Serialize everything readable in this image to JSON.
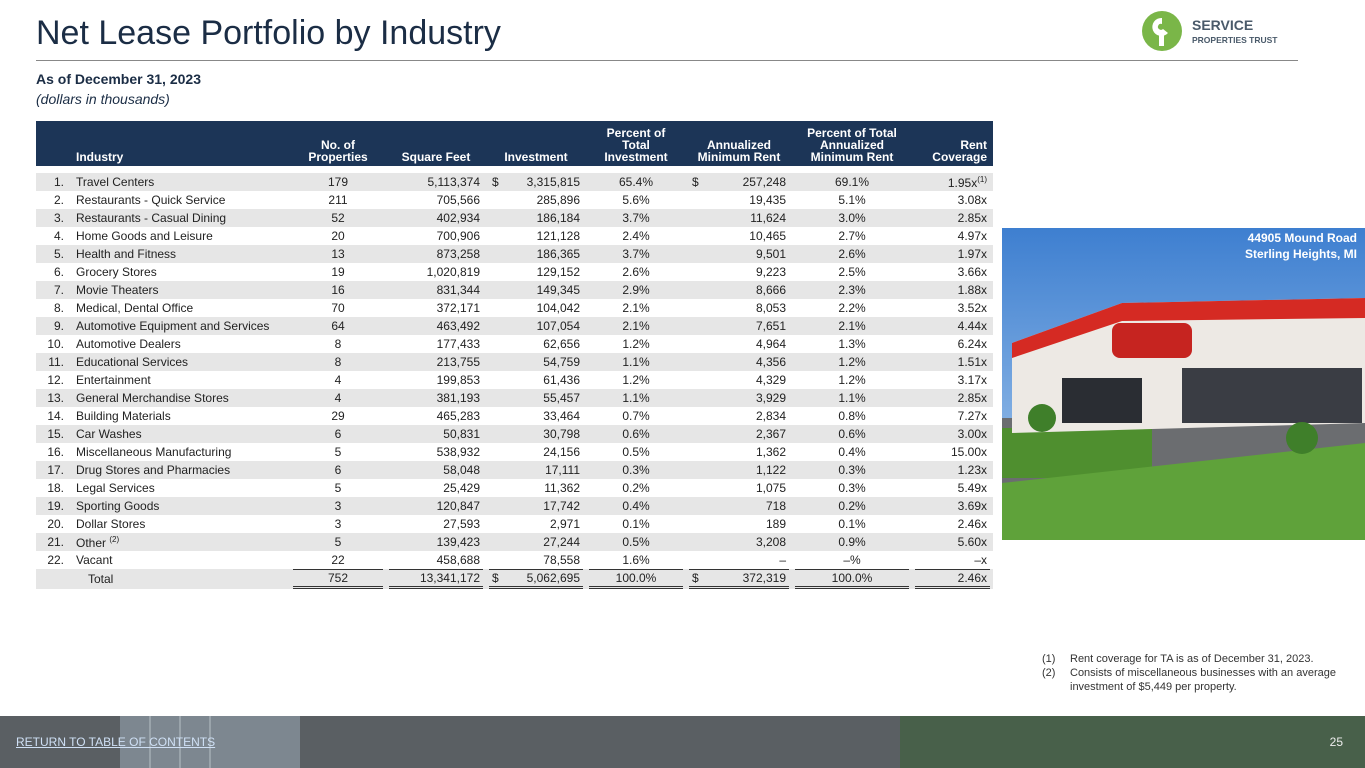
{
  "header": {
    "title": "Net Lease Portfolio by Industry",
    "logo_top": "SERVICE",
    "logo_bottom": "PROPERTIES TRUST",
    "subtitle": "As of December 31, 2023",
    "units": "(dollars in thousands)"
  },
  "table": {
    "columns": [
      "Industry",
      "No. of Properties",
      "Square Feet",
      "Investment",
      "Percent of Total Investment",
      "Annualized Minimum Rent",
      "Percent of Total Annualized Minimum Rent",
      "Rent Coverage"
    ],
    "rows": [
      {
        "n": "1.",
        "industry": "Travel Centers",
        "values": [
          "179",
          "5,113,374",
          "3,315,815",
          "65.4%",
          "257,248",
          "69.1%",
          "1.95x"
        ],
        "currency": "$",
        "coverage_note": "(1)"
      },
      {
        "n": "2.",
        "industry": "Restaurants - Quick Service",
        "values": [
          "211",
          "705,566",
          "285,896",
          "5.6%",
          "19,435",
          "5.1%",
          "3.08x"
        ]
      },
      {
        "n": "3.",
        "industry": "Restaurants - Casual Dining",
        "values": [
          "52",
          "402,934",
          "186,184",
          "3.7%",
          "11,624",
          "3.0%",
          "2.85x"
        ]
      },
      {
        "n": "4.",
        "industry": "Home Goods and Leisure",
        "values": [
          "20",
          "700,906",
          "121,128",
          "2.4%",
          "10,465",
          "2.7%",
          "4.97x"
        ]
      },
      {
        "n": "5.",
        "industry": "Health and Fitness",
        "values": [
          "13",
          "873,258",
          "186,365",
          "3.7%",
          "9,501",
          "2.6%",
          "1.97x"
        ]
      },
      {
        "n": "6.",
        "industry": "Grocery Stores",
        "values": [
          "19",
          "1,020,819",
          "129,152",
          "2.6%",
          "9,223",
          "2.5%",
          "3.66x"
        ]
      },
      {
        "n": "7.",
        "industry": "Movie Theaters",
        "values": [
          "16",
          "831,344",
          "149,345",
          "2.9%",
          "8,666",
          "2.3%",
          "1.88x"
        ]
      },
      {
        "n": "8.",
        "industry": "Medical, Dental Office",
        "values": [
          "70",
          "372,171",
          "104,042",
          "2.1%",
          "8,053",
          "2.2%",
          "3.52x"
        ]
      },
      {
        "n": "9.",
        "industry": "Automotive Equipment and Services",
        "values": [
          "64",
          "463,492",
          "107,054",
          "2.1%",
          "7,651",
          "2.1%",
          "4.44x"
        ]
      },
      {
        "n": "10.",
        "industry": "Automotive Dealers",
        "values": [
          "8",
          "177,433",
          "62,656",
          "1.2%",
          "4,964",
          "1.3%",
          "6.24x"
        ]
      },
      {
        "n": "11.",
        "industry": "Educational Services",
        "values": [
          "8",
          "213,755",
          "54,759",
          "1.1%",
          "4,356",
          "1.2%",
          "1.51x"
        ]
      },
      {
        "n": "12.",
        "industry": "Entertainment",
        "values": [
          "4",
          "199,853",
          "61,436",
          "1.2%",
          "4,329",
          "1.2%",
          "3.17x"
        ]
      },
      {
        "n": "13.",
        "industry": "General Merchandise Stores",
        "values": [
          "4",
          "381,193",
          "55,457",
          "1.1%",
          "3,929",
          "1.1%",
          "2.85x"
        ]
      },
      {
        "n": "14.",
        "industry": "Building Materials",
        "values": [
          "29",
          "465,283",
          "33,464",
          "0.7%",
          "2,834",
          "0.8%",
          "7.27x"
        ]
      },
      {
        "n": "15.",
        "industry": "Car Washes",
        "values": [
          "6",
          "50,831",
          "30,798",
          "0.6%",
          "2,367",
          "0.6%",
          "3.00x"
        ]
      },
      {
        "n": "16.",
        "industry": "Miscellaneous Manufacturing",
        "values": [
          "5",
          "538,932",
          "24,156",
          "0.5%",
          "1,362",
          "0.4%",
          "15.00x"
        ]
      },
      {
        "n": "17.",
        "industry": "Drug Stores and Pharmacies",
        "values": [
          "6",
          "58,048",
          "17,111",
          "0.3%",
          "1,122",
          "0.3%",
          "1.23x"
        ]
      },
      {
        "n": "18.",
        "industry": "Legal Services",
        "values": [
          "5",
          "25,429",
          "11,362",
          "0.2%",
          "1,075",
          "0.3%",
          "5.49x"
        ]
      },
      {
        "n": "19.",
        "industry": "Sporting Goods",
        "values": [
          "3",
          "120,847",
          "17,742",
          "0.4%",
          "718",
          "0.2%",
          "3.69x"
        ]
      },
      {
        "n": "20.",
        "industry": "Dollar Stores",
        "values": [
          "3",
          "27,593",
          "2,971",
          "0.1%",
          "189",
          "0.1%",
          "2.46x"
        ]
      },
      {
        "n": "21.",
        "industry": "Other",
        "values": [
          "5",
          "139,423",
          "27,244",
          "0.5%",
          "3,208",
          "0.9%",
          "5.60x"
        ],
        "industry_note": "(2)"
      },
      {
        "n": "22.",
        "industry": "Vacant",
        "values": [
          "22",
          "458,688",
          "78,558",
          "1.6%",
          "–",
          "–%",
          "–x"
        ]
      }
    ],
    "total": {
      "label": "Total",
      "values": [
        "752",
        "13,341,172",
        "5,062,695",
        "100.0%",
        "372,319",
        "100.0%",
        "2.46x"
      ],
      "currency": "$"
    }
  },
  "photo": {
    "address": "44905 Mound Road",
    "city": "Sterling Heights, MI"
  },
  "footnotes": [
    {
      "mark": "(1)",
      "text": "Rent coverage for TA is as of December 31, 2023."
    },
    {
      "mark": "(2)",
      "text": "Consists of miscellaneous businesses with an average investment of $5,449 per property."
    }
  ],
  "footer": {
    "link": "RETURN TO TABLE OF CONTENTS",
    "page": "25"
  }
}
